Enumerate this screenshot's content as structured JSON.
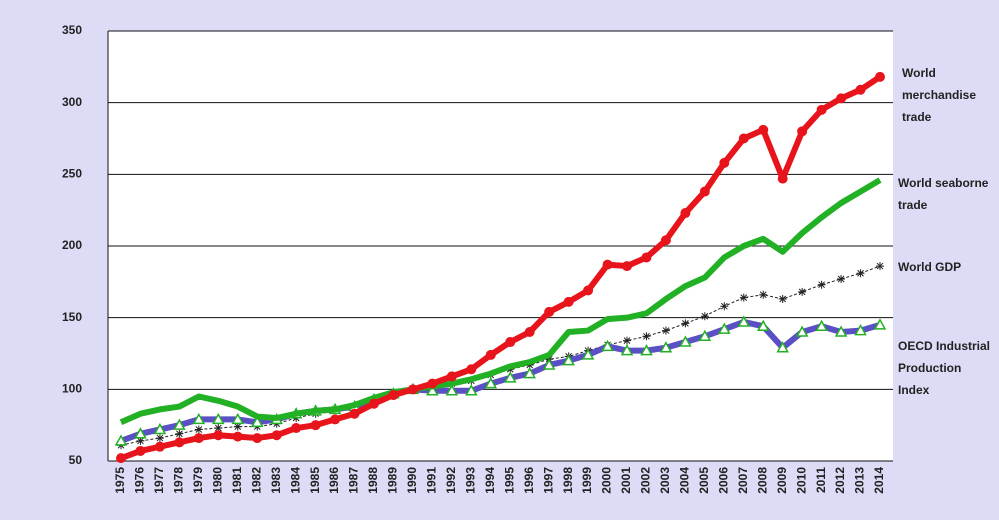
{
  "chart_data": {
    "type": "line",
    "categories": [
      "1975",
      "1976",
      "1977",
      "1978",
      "1979",
      "1980",
      "1981",
      "1982",
      "1983",
      "1984",
      "1985",
      "1986",
      "1987",
      "1988",
      "1989",
      "1990",
      "1991",
      "1992",
      "1993",
      "1994",
      "1995",
      "1996",
      "1997",
      "1998",
      "1999",
      "2000",
      "2001",
      "2002",
      "2003",
      "2004",
      "2005",
      "2006",
      "2007",
      "2008",
      "2009",
      "2010",
      "2011",
      "2012",
      "2013",
      "2014"
    ],
    "series": [
      {
        "name": "World merchandise trade",
        "color": "#e8141c",
        "values": [
          52,
          57,
          60,
          63,
          66,
          68,
          67,
          66,
          68,
          73,
          75,
          79,
          83,
          90,
          96,
          100,
          104,
          109,
          114,
          124,
          133,
          140,
          154,
          161,
          169,
          187,
          186,
          192,
          204,
          223,
          238,
          258,
          275,
          281,
          247,
          280,
          295,
          303,
          309,
          318
        ]
      },
      {
        "name": "World seaborne trade",
        "color": "#22b024",
        "values": [
          77,
          83,
          86,
          88,
          95,
          92,
          88,
          81,
          80,
          83,
          85,
          86,
          89,
          94,
          98,
          100,
          102,
          104,
          107,
          111,
          116,
          119,
          124,
          140,
          141,
          149,
          150,
          153,
          163,
          172,
          178,
          192,
          200,
          205,
          196,
          209,
          220,
          230,
          238,
          246
        ]
      },
      {
        "name": "World GDP",
        "color": "#222222",
        "values": [
          61,
          64,
          66,
          69,
          72,
          73,
          74,
          74,
          76,
          80,
          83,
          86,
          88,
          92,
          96,
          100,
          101,
          104,
          106,
          110,
          114,
          117,
          121,
          123,
          127,
          131,
          134,
          137,
          141,
          146,
          151,
          158,
          164,
          166,
          163,
          168,
          173,
          177,
          181,
          186
        ]
      },
      {
        "name": "OECD Industrial Production Index",
        "color": "#5a4fc4",
        "values": [
          64,
          69,
          72,
          75,
          79,
          79,
          79,
          77,
          79,
          83,
          85,
          86,
          88,
          93,
          97,
          100,
          99,
          99,
          99,
          104,
          108,
          111,
          117,
          120,
          124,
          130,
          127,
          127,
          129,
          133,
          137,
          142,
          147,
          144,
          129,
          140,
          144,
          140,
          141,
          145
        ]
      }
    ],
    "ylim": [
      50,
      350
    ],
    "yticks": [
      50,
      100,
      150,
      200,
      250,
      300,
      350
    ],
    "grid": true
  }
}
